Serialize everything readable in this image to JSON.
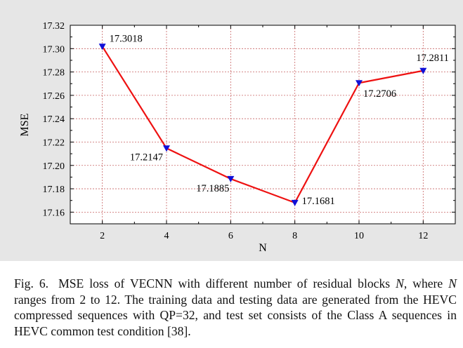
{
  "chart_data": {
    "type": "line",
    "title": "",
    "xlabel": "N",
    "ylabel": "MSE",
    "x": [
      2,
      4,
      6,
      8,
      10,
      12
    ],
    "xticks": [
      "2",
      "4",
      "6",
      "8",
      "10",
      "12"
    ],
    "yticks": [
      "17.16",
      "17.18",
      "17.20",
      "17.22",
      "17.24",
      "17.26",
      "17.28",
      "17.30",
      "17.32"
    ],
    "xlim": [
      1,
      13
    ],
    "ylim": [
      17.15,
      17.32
    ],
    "grid": true,
    "series": [
      {
        "values": [
          17.3018,
          17.2147,
          17.1885,
          17.1681,
          17.2706,
          17.2811
        ],
        "labels": [
          "17.3018",
          "17.2147",
          "17.1885",
          "17.1681",
          "17.2706",
          "17.2811"
        ],
        "marker": "triangle-down",
        "line_color": "#ee1111",
        "marker_color": "#1010d8"
      }
    ],
    "background_color": "#e6e6e6",
    "plot_area_color": "#ffffff",
    "grid_color": "#c86464"
  },
  "caption": {
    "label": "Fig. 6.",
    "text_before_n": "MSE loss of VECNN with different number of residual blocks",
    "n_symbol": "N",
    "text_after_n": ", where",
    "n_symbol_2": "N",
    "text_rest": "ranges from 2 to 12. The training data and testing data are generated from the HEVC compressed sequences with QP=32, and test set consists of the Class A sequences in HEVC common test condition [38]."
  }
}
